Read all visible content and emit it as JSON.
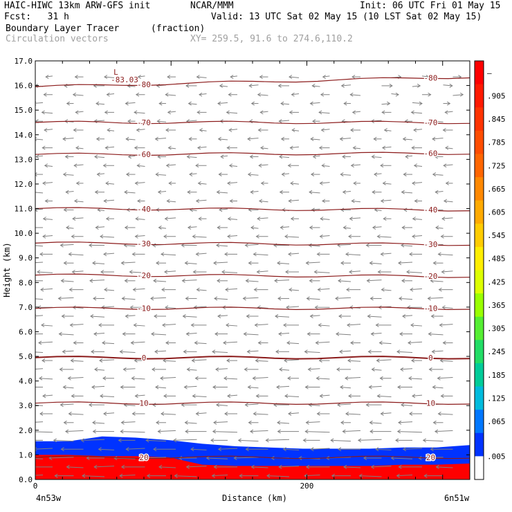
{
  "header": {
    "title_left": "HAIC-HIWC 13km ARW-GFS init",
    "org": "NCAR/MMM",
    "init": "Init: 06 UTC Fri 01 May 15",
    "fcst": "Fcst:   31 h",
    "valid": "Valid: 13 UTC Sat 02 May 15 (10 LST Sat 02 May 15)",
    "field": "Boundary Layer Tracer",
    "units": "(fraction)",
    "vectors": "Circulation vectors",
    "xy": "XY= 259.5, 91.6 to 274.6,110.2"
  },
  "colors": {
    "contour": "#8b1a1a",
    "vector": "#808080",
    "low_label": "#8b1a1a"
  },
  "chart_data": {
    "type": "heatmap",
    "title": "Boundary Layer Tracer",
    "xlabel": "Distance (km)",
    "ylabel": "Height (km)",
    "xlim": [
      0,
      320
    ],
    "ylim": [
      0,
      17
    ],
    "yticks": [
      "0.0",
      "1.0",
      "2.0",
      "3.0",
      "4.0",
      "5.0",
      "6.0",
      "7.0",
      "8.0",
      "9.0",
      "10.0",
      "11.0",
      "12.0",
      "13.0",
      "14.0",
      "15.0",
      "16.0",
      "17.0"
    ],
    "xticks": [
      {
        "value": 0,
        "label": "0"
      },
      {
        "value": 200,
        "label": "200"
      }
    ],
    "x_endpoints": {
      "left": "4n53w",
      "right": "6n51w"
    },
    "colorbar": {
      "labels": [
        "–",
        ".905",
        ".845",
        ".785",
        ".725",
        ".665",
        ".605",
        ".545",
        ".485",
        ".425",
        ".365",
        ".305",
        ".245",
        ".185",
        ".125",
        ".065",
        ".005"
      ],
      "colors": [
        "#ff0000",
        "#ff1a00",
        "#ff3300",
        "#ff4d00",
        "#ff6600",
        "#ff8800",
        "#ffaa00",
        "#ffcc00",
        "#ffee00",
        "#ddff00",
        "#99ff00",
        "#55ee33",
        "#22dd66",
        "#00cc99",
        "#00bbdd",
        "#0077ff",
        "#0033ff",
        "#ffffff"
      ]
    },
    "temperature_contours": [
      {
        "label": "-80",
        "heights": [
          15.95,
          16.35
        ]
      },
      {
        "label": "-70",
        "heights": [
          14.5,
          14.5
        ]
      },
      {
        "label": "-60",
        "heights": [
          13.2,
          13.25
        ]
      },
      {
        "label": "-40",
        "heights": [
          11.0,
          10.95
        ]
      },
      {
        "label": "-30",
        "heights": [
          9.6,
          9.55
        ]
      },
      {
        "label": "-20",
        "heights": [
          8.3,
          8.25
        ]
      },
      {
        "label": "-10",
        "heights": [
          6.95,
          6.95
        ]
      },
      {
        "label": "0",
        "heights": [
          4.95,
          4.95
        ]
      },
      {
        "label": "10",
        "heights": [
          3.1,
          3.1
        ]
      },
      {
        "label": "20",
        "heights": [
          0.9,
          0.9
        ]
      }
    ],
    "minimum_label": {
      "text": "L",
      "value": "-83.03",
      "x": 50,
      "y": 16.6
    },
    "tracer_top_km": [
      1.55,
      1.55,
      1.75,
      1.7,
      1.6,
      1.45,
      1.35,
      1.3,
      1.25,
      1.25,
      1.25,
      1.3,
      1.3,
      1.4
    ],
    "tracer_core_top_km": [
      1.0,
      1.0,
      0.95,
      0.95,
      0.9,
      0.6,
      0.55,
      0.55,
      0.55,
      0.55,
      0.55,
      0.6,
      0.6,
      0.65
    ]
  }
}
